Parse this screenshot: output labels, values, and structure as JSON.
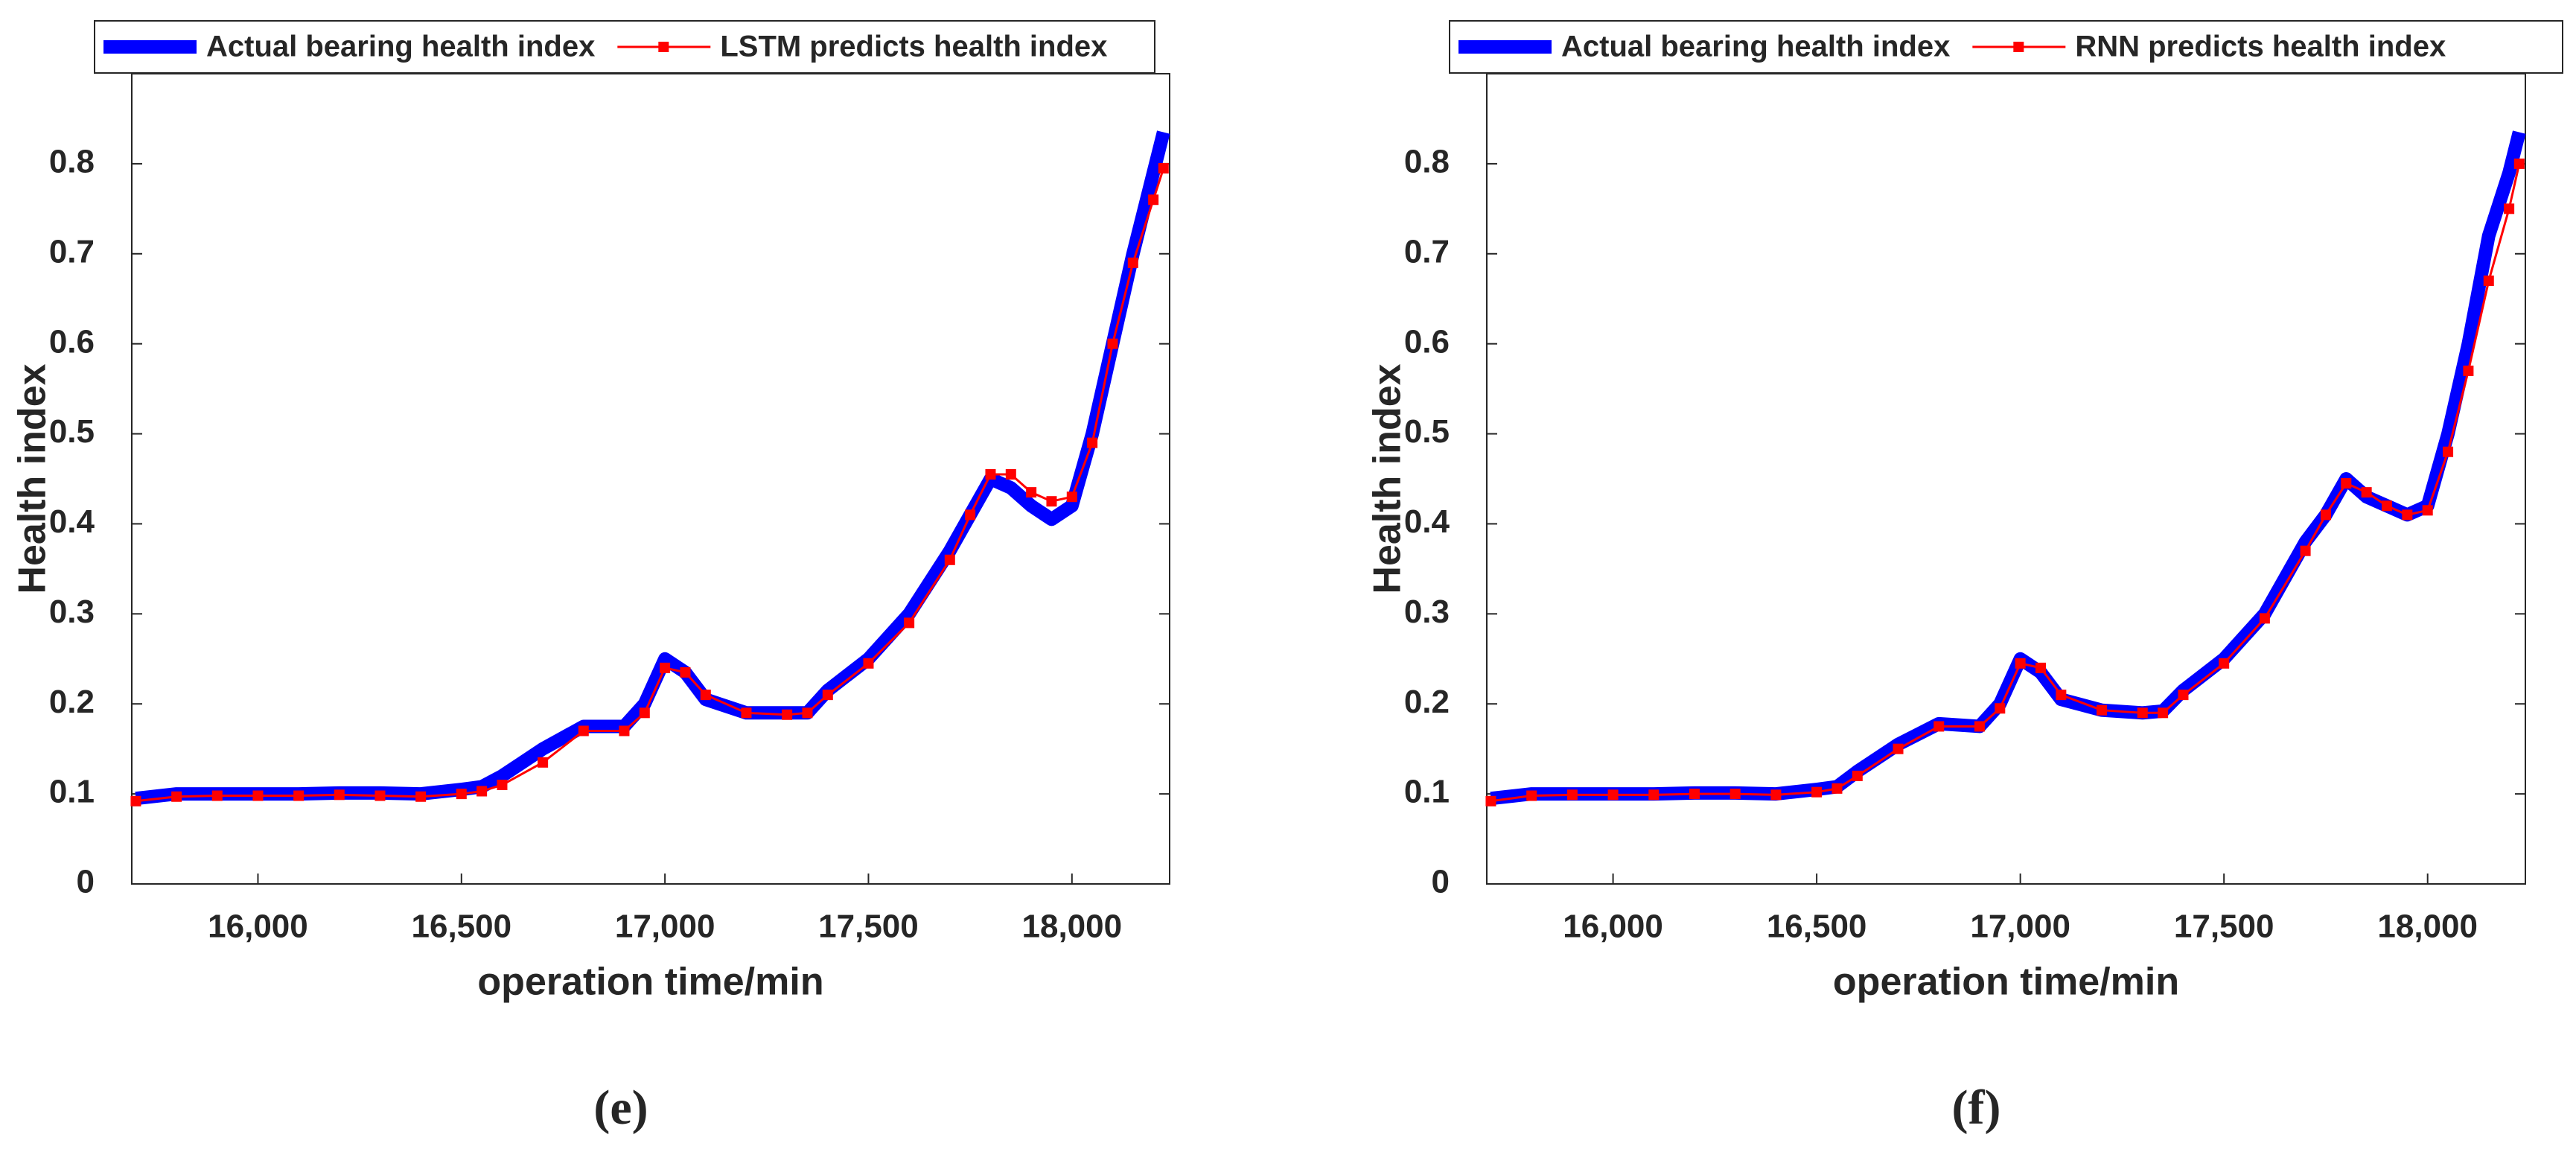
{
  "chart_data": [
    {
      "type": "line",
      "label": "(e)",
      "xlabel": "operation time/min",
      "ylabel": "Health index",
      "x": [
        15700,
        15800,
        15900,
        16000,
        16100,
        16200,
        16300,
        16400,
        16500,
        16550,
        16600,
        16700,
        16800,
        16900,
        16950,
        17000,
        17050,
        17100,
        17200,
        17300,
        17350,
        17400,
        17500,
        17600,
        17700,
        17750,
        17800,
        17850,
        17900,
        17950,
        18000,
        18050,
        18100,
        18150,
        18200,
        18225
      ],
      "series": [
        {
          "name": "Actual bearing health index",
          "color": "#0000ff",
          "values": [
            0.095,
            0.1,
            0.1,
            0.1,
            0.1,
            0.101,
            0.101,
            0.1,
            0.105,
            0.108,
            0.12,
            0.15,
            0.175,
            0.175,
            0.2,
            0.25,
            0.235,
            0.205,
            0.19,
            0.19,
            0.19,
            0.215,
            0.25,
            0.3,
            0.37,
            0.41,
            0.45,
            0.44,
            0.42,
            0.405,
            0.42,
            0.5,
            0.6,
            0.7,
            0.79,
            0.835
          ]
        },
        {
          "name": "LSTM predicts health index",
          "color": "#ff0000",
          "values": [
            0.092,
            0.097,
            0.098,
            0.098,
            0.098,
            0.099,
            0.098,
            0.097,
            0.1,
            0.103,
            0.11,
            0.135,
            0.17,
            0.17,
            0.19,
            0.24,
            0.235,
            0.21,
            0.19,
            0.188,
            0.19,
            0.21,
            0.245,
            0.29,
            0.36,
            0.41,
            0.455,
            0.455,
            0.435,
            0.425,
            0.43,
            0.49,
            0.6,
            0.69,
            0.76,
            0.795
          ]
        }
      ],
      "xlim": [
        15690,
        18240
      ],
      "xticks": [
        {
          "value": 16000,
          "label": "16,000"
        },
        {
          "value": 16500,
          "label": "16,500"
        },
        {
          "value": 17000,
          "label": "17,000"
        },
        {
          "value": 17500,
          "label": "17,500"
        },
        {
          "value": 18000,
          "label": "18,000"
        }
      ],
      "ylim": [
        0,
        0.9
      ],
      "yticks": [
        0,
        0.1,
        0.2,
        0.3,
        0.4,
        0.5,
        0.6,
        0.7,
        0.8
      ]
    },
    {
      "type": "line",
      "label": "(f)",
      "xlabel": "operation time/min",
      "ylabel": "Health index",
      "x": [
        15700,
        15800,
        15900,
        16000,
        16100,
        16200,
        16300,
        16400,
        16500,
        16550,
        16600,
        16700,
        16800,
        16900,
        16950,
        17000,
        17050,
        17100,
        17200,
        17300,
        17350,
        17400,
        17500,
        17600,
        17700,
        17750,
        17800,
        17850,
        17900,
        17950,
        18000,
        18050,
        18100,
        18150,
        18200,
        18225
      ],
      "series": [
        {
          "name": "Actual bearing health index",
          "color": "#0000ff",
          "values": [
            0.095,
            0.1,
            0.1,
            0.1,
            0.1,
            0.101,
            0.101,
            0.1,
            0.105,
            0.108,
            0.125,
            0.155,
            0.178,
            0.175,
            0.2,
            0.25,
            0.235,
            0.205,
            0.193,
            0.19,
            0.192,
            0.215,
            0.25,
            0.3,
            0.38,
            0.41,
            0.45,
            0.43,
            0.42,
            0.41,
            0.42,
            0.5,
            0.6,
            0.72,
            0.79,
            0.835
          ]
        },
        {
          "name": "RNN predicts health index",
          "color": "#ff0000",
          "values": [
            0.092,
            0.098,
            0.099,
            0.099,
            0.099,
            0.1,
            0.1,
            0.099,
            0.102,
            0.106,
            0.12,
            0.15,
            0.175,
            0.175,
            0.195,
            0.245,
            0.24,
            0.21,
            0.193,
            0.19,
            0.19,
            0.21,
            0.245,
            0.295,
            0.37,
            0.41,
            0.445,
            0.435,
            0.42,
            0.41,
            0.415,
            0.48,
            0.57,
            0.67,
            0.75,
            0.8
          ]
        }
      ],
      "xlim": [
        15690,
        18240
      ],
      "xticks": [
        {
          "value": 16000,
          "label": "16,000"
        },
        {
          "value": 16500,
          "label": "16,500"
        },
        {
          "value": 17000,
          "label": "17,000"
        },
        {
          "value": 17500,
          "label": "17,500"
        },
        {
          "value": 18000,
          "label": "18,000"
        }
      ],
      "ylim": [
        0,
        0.9
      ],
      "yticks": [
        0,
        0.1,
        0.2,
        0.3,
        0.4,
        0.5,
        0.6,
        0.7,
        0.8
      ]
    }
  ]
}
